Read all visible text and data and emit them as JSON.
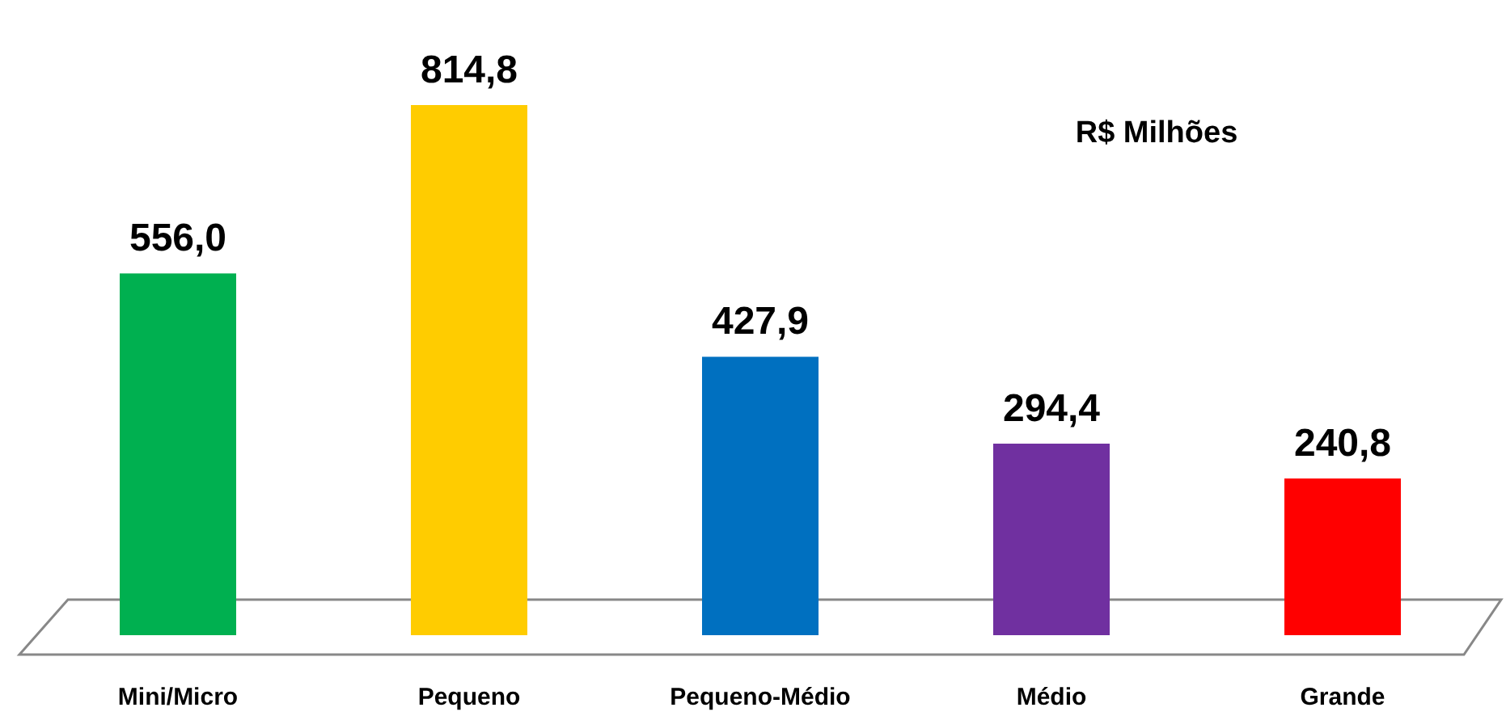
{
  "chart_data": {
    "type": "bar",
    "categories": [
      "Mini/Micro",
      "Pequeno",
      "Pequeno-Médio",
      "Médio",
      "Grande"
    ],
    "values": [
      556.0,
      814.8,
      427.9,
      294.4,
      240.8
    ],
    "colors": [
      "#00b050",
      "#ffcc00",
      "#0070c0",
      "#7030a0",
      "#ff0000"
    ],
    "value_labels": [
      "556,0",
      "814,8",
      "427,9",
      "294,4",
      "240,8"
    ],
    "annotations": [
      "R$ Milhões"
    ]
  }
}
